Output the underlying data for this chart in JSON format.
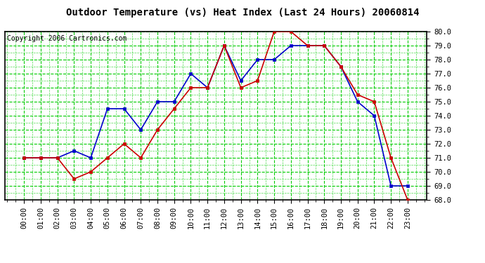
{
  "title": "Outdoor Temperature (vs) Heat Index (Last 24 Hours) 20060814",
  "copyright": "Copyright 2006 Cartronics.com",
  "hours": [
    "00:00",
    "01:00",
    "02:00",
    "03:00",
    "04:00",
    "05:00",
    "06:00",
    "07:00",
    "08:00",
    "09:00",
    "10:00",
    "11:00",
    "12:00",
    "13:00",
    "14:00",
    "15:00",
    "16:00",
    "17:00",
    "18:00",
    "19:00",
    "20:00",
    "21:00",
    "22:00",
    "23:00"
  ],
  "temp_blue": [
    71.0,
    71.0,
    71.0,
    71.5,
    71.0,
    74.5,
    74.5,
    73.0,
    75.0,
    75.0,
    77.0,
    76.0,
    79.0,
    76.5,
    78.0,
    78.0,
    79.0,
    79.0,
    79.0,
    77.5,
    75.0,
    74.0,
    69.0,
    69.0
  ],
  "heat_red": [
    71.0,
    71.0,
    71.0,
    69.5,
    70.0,
    71.0,
    72.0,
    71.0,
    73.0,
    74.5,
    76.0,
    76.0,
    79.0,
    76.0,
    76.5,
    80.0,
    80.0,
    79.0,
    79.0,
    77.5,
    75.5,
    75.0,
    71.0,
    68.0
  ],
  "ylim": [
    68.0,
    80.0
  ],
  "yticks": [
    68.0,
    69.0,
    70.0,
    71.0,
    72.0,
    73.0,
    74.0,
    75.0,
    76.0,
    77.0,
    78.0,
    79.0,
    80.0
  ],
  "bg_color": "#ffffff",
  "plot_bg": "#ffffff",
  "grid_major_color": "#00cc00",
  "grid_minor_color": "#00cc00",
  "blue_color": "#0000cc",
  "red_color": "#cc0000",
  "title_fontsize": 10,
  "copyright_fontsize": 7,
  "tick_fontsize": 7.5,
  "marker_size": 3.5,
  "line_width": 1.2
}
